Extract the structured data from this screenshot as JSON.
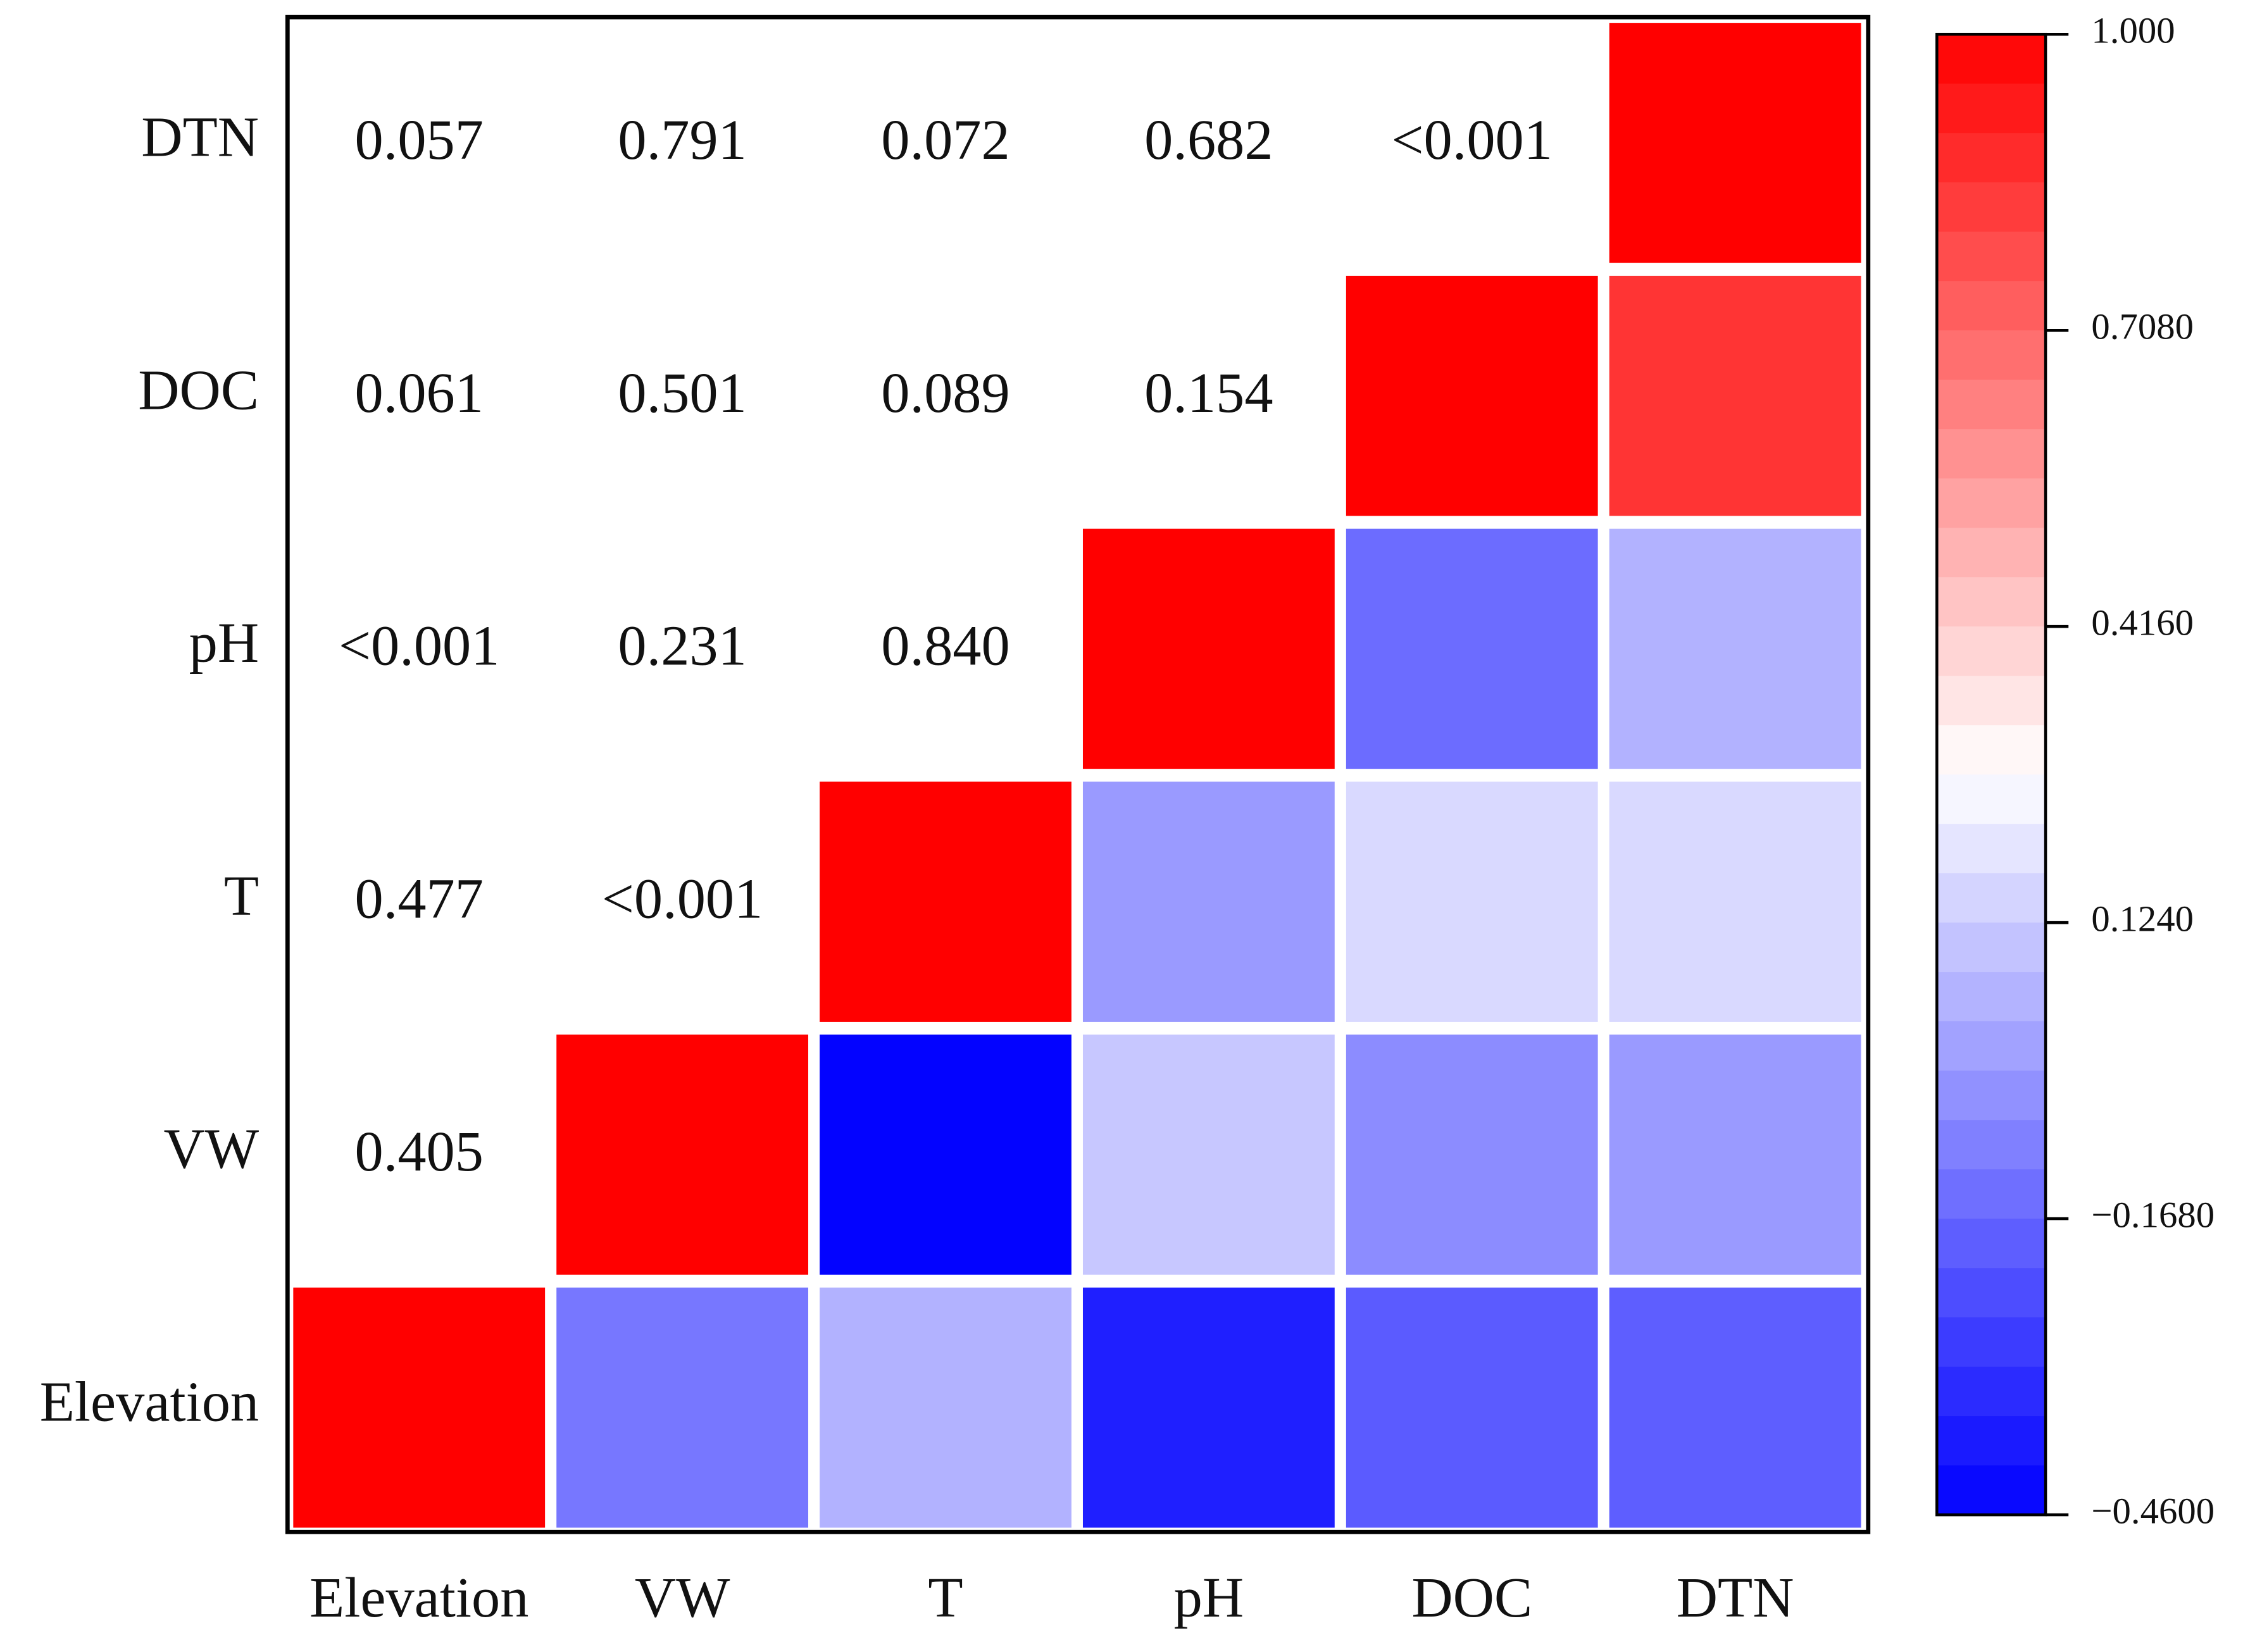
{
  "chart_data": {
    "type": "heatmap",
    "categories": [
      "Elevation",
      "VW",
      "T",
      "pH",
      "DOC",
      "DTN"
    ],
    "values": [
      [
        1,
        -0.12,
        0.05,
        -0.37,
        -0.2,
        -0.19
      ],
      [
        null,
        1,
        -0.45,
        0.11,
        -0.06,
        -0.02
      ],
      [
        null,
        null,
        1,
        -0.02,
        0.16,
        0.16
      ],
      [
        null,
        null,
        null,
        1,
        -0.15,
        0.05
      ],
      [
        null,
        null,
        null,
        null,
        1,
        0.85
      ],
      [
        null,
        null,
        null,
        null,
        null,
        1
      ]
    ],
    "p_labels": [
      [
        null,
        null,
        null,
        null,
        null,
        null
      ],
      [
        "0.405",
        null,
        null,
        null,
        null,
        null
      ],
      [
        "0.477",
        "<0.001",
        null,
        null,
        null,
        null
      ],
      [
        "<0.001",
        "0.231",
        "0.840",
        null,
        null,
        null
      ],
      [
        "0.061",
        "0.501",
        "0.089",
        "0.154",
        null,
        null
      ],
      [
        "0.057",
        "0.791",
        "0.072",
        "0.682",
        "<0.001",
        null
      ]
    ],
    "colormap": [
      "#0000ff",
      "#ffffff",
      "#ff0000"
    ],
    "zlim": [
      -0.46,
      1.0
    ],
    "zticks": [
      {
        "value": 1.0,
        "label": "1.000"
      },
      {
        "value": 0.708,
        "label": "0.7080"
      },
      {
        "value": 0.416,
        "label": "0.4160"
      },
      {
        "value": 0.124,
        "label": "0.1240"
      },
      {
        "value": -0.168,
        "label": "−0.1680"
      },
      {
        "value": -0.46,
        "label": "−0.4600"
      }
    ]
  }
}
